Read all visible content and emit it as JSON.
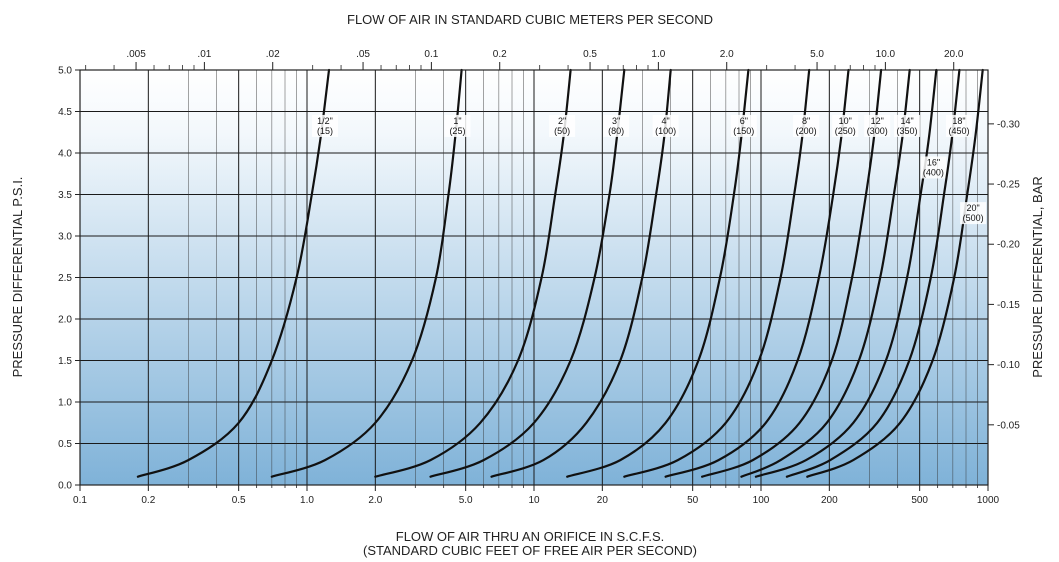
{
  "chart_data": {
    "type": "line",
    "scale_x": "log",
    "grid": true,
    "top_axis_title": "FLOW OF AIR IN STANDARD CUBIC METERS PER SECOND",
    "xlabel_line1": "FLOW OF AIR THRU AN ORIFICE IN S.C.F.S.",
    "xlabel_line2": "(STANDARD CUBIC FEET OF FREE AIR PER SECOND)",
    "ylabel": "PRESSURE DIFFERENTIAL P.S.I.",
    "ylabel_right": "PRESSURE DIFFERENTIAL, BAR",
    "xlim": [
      0.1,
      1000
    ],
    "ylim": [
      0.0,
      5.0
    ],
    "x_ticks": [
      {
        "value": 0.1,
        "label": "0.1"
      },
      {
        "value": 0.2,
        "label": "0.2"
      },
      {
        "value": 0.5,
        "label": "0.5"
      },
      {
        "value": 1,
        "label": "1.0"
      },
      {
        "value": 2,
        "label": "2.0"
      },
      {
        "value": 5,
        "label": "5.0"
      },
      {
        "value": 10,
        "label": "10"
      },
      {
        "value": 20,
        "label": "20"
      },
      {
        "value": 50,
        "label": "50"
      },
      {
        "value": 100,
        "label": "100"
      },
      {
        "value": 200,
        "label": "200"
      },
      {
        "value": 500,
        "label": "500"
      },
      {
        "value": 1000,
        "label": "1000"
      }
    ],
    "x_minor": [
      0.3,
      0.4,
      0.6,
      0.7,
      0.8,
      0.9,
      3,
      4,
      6,
      7,
      8,
      9,
      30,
      40,
      60,
      70,
      80,
      90,
      300,
      400,
      600,
      700,
      800,
      900
    ],
    "top_ticks": [
      {
        "label": ".005",
        "m3s": 0.005
      },
      {
        "label": ".01",
        "m3s": 0.01
      },
      {
        "label": ".02",
        "m3s": 0.02
      },
      {
        "label": ".05",
        "m3s": 0.05
      },
      {
        "label": "0.1",
        "m3s": 0.1
      },
      {
        "label": "0.2",
        "m3s": 0.2
      },
      {
        "label": "0.5",
        "m3s": 0.5
      },
      {
        "label": "1.0",
        "m3s": 1.0
      },
      {
        "label": "2.0",
        "m3s": 2.0
      },
      {
        "label": "5.0",
        "m3s": 5.0
      },
      {
        "label": "10.0",
        "m3s": 10.0
      },
      {
        "label": "20.0",
        "m3s": 20.0
      }
    ],
    "top_minor_m3s": [
      0.003,
      0.004,
      0.006,
      0.007,
      0.008,
      0.009,
      0.03,
      0.04,
      0.06,
      0.07,
      0.08,
      0.09,
      0.3,
      0.4,
      0.6,
      0.7,
      0.8,
      0.9,
      3,
      4,
      6,
      7,
      8,
      9
    ],
    "y_ticks": [
      {
        "value": 0.0,
        "label": "0.0"
      },
      {
        "value": 0.5,
        "label": "0.5"
      },
      {
        "value": 1.0,
        "label": "1.0"
      },
      {
        "value": 1.5,
        "label": "1.5"
      },
      {
        "value": 2.0,
        "label": "2.0"
      },
      {
        "value": 2.5,
        "label": "2.5"
      },
      {
        "value": 3.0,
        "label": "3.0"
      },
      {
        "value": 3.5,
        "label": "3.5"
      },
      {
        "value": 4.0,
        "label": "4.0"
      },
      {
        "value": 4.5,
        "label": "4.5"
      },
      {
        "value": 5.0,
        "label": "5.0"
      }
    ],
    "y_right_ticks": [
      {
        "label": "0.05",
        "psi": 0.725
      },
      {
        "label": "0.10",
        "psi": 1.45
      },
      {
        "label": "0.15",
        "psi": 2.176
      },
      {
        "label": "0.20",
        "psi": 2.901
      },
      {
        "label": "0.25",
        "psi": 3.626
      },
      {
        "label": "0.30",
        "psi": 4.351
      }
    ],
    "series": [
      {
        "name": "1/2\"",
        "sub": "(15)",
        "label_at": [
          1.2,
          4.35
        ],
        "points": [
          [
            0.18,
            0.1
          ],
          [
            0.3,
            0.3
          ],
          [
            0.5,
            0.75
          ],
          [
            0.7,
            1.5
          ],
          [
            0.9,
            2.5
          ],
          [
            1.05,
            3.5
          ],
          [
            1.15,
            4.2
          ],
          [
            1.25,
            5.0
          ]
        ]
      },
      {
        "name": "1\"",
        "sub": "(25)",
        "label_at": [
          4.6,
          4.35
        ],
        "points": [
          [
            0.7,
            0.1
          ],
          [
            1.2,
            0.3
          ],
          [
            2.0,
            0.75
          ],
          [
            2.9,
            1.5
          ],
          [
            3.7,
            2.5
          ],
          [
            4.2,
            3.5
          ],
          [
            4.5,
            4.2
          ],
          [
            4.8,
            5.0
          ]
        ]
      },
      {
        "name": "2\"",
        "sub": "(50)",
        "label_at": [
          13.3,
          4.35
        ],
        "points": [
          [
            2.0,
            0.1
          ],
          [
            3.5,
            0.3
          ],
          [
            5.8,
            0.75
          ],
          [
            8.5,
            1.5
          ],
          [
            10.8,
            2.5
          ],
          [
            12.4,
            3.5
          ],
          [
            13.5,
            4.2
          ],
          [
            14.5,
            5.0
          ]
        ]
      },
      {
        "name": "3\"",
        "sub": "(80)",
        "label_at": [
          23,
          4.35
        ],
        "points": [
          [
            3.5,
            0.1
          ],
          [
            6.0,
            0.3
          ],
          [
            10.0,
            0.75
          ],
          [
            14.5,
            1.5
          ],
          [
            18.5,
            2.5
          ],
          [
            21.5,
            3.5
          ],
          [
            23.2,
            4.2
          ],
          [
            25,
            5.0
          ]
        ]
      },
      {
        "name": "4\"",
        "sub": "(100)",
        "label_at": [
          38,
          4.35
        ],
        "points": [
          [
            6.5,
            0.1
          ],
          [
            11.0,
            0.3
          ],
          [
            17.0,
            0.75
          ],
          [
            24.0,
            1.5
          ],
          [
            30.0,
            2.5
          ],
          [
            34.5,
            3.5
          ],
          [
            37.5,
            4.2
          ],
          [
            40,
            5.0
          ]
        ]
      },
      {
        "name": "6\"",
        "sub": "(150)",
        "label_at": [
          84,
          4.35
        ],
        "points": [
          [
            14,
            0.1
          ],
          [
            24,
            0.3
          ],
          [
            38,
            0.75
          ],
          [
            53,
            1.5
          ],
          [
            66,
            2.5
          ],
          [
            76,
            3.5
          ],
          [
            82,
            4.2
          ],
          [
            88,
            5.0
          ]
        ]
      },
      {
        "name": "8\"",
        "sub": "(200)",
        "label_at": [
          158,
          4.35
        ],
        "points": [
          [
            25,
            0.1
          ],
          [
            43,
            0.3
          ],
          [
            70,
            0.75
          ],
          [
            98,
            1.5
          ],
          [
            122,
            2.5
          ],
          [
            140,
            3.5
          ],
          [
            152,
            4.2
          ],
          [
            163,
            5.0
          ]
        ]
      },
      {
        "name": "10\"",
        "sub": "(250)",
        "label_at": [
          235,
          4.35
        ],
        "points": [
          [
            38,
            0.1
          ],
          [
            65,
            0.3
          ],
          [
            105,
            0.75
          ],
          [
            145,
            1.5
          ],
          [
            180,
            2.5
          ],
          [
            208,
            3.5
          ],
          [
            226,
            4.2
          ],
          [
            243,
            5.0
          ]
        ]
      },
      {
        "name": "12\"",
        "sub": "(300)",
        "label_at": [
          325,
          4.35
        ],
        "points": [
          [
            55,
            0.1
          ],
          [
            92,
            0.3
          ],
          [
            148,
            0.75
          ],
          [
            205,
            1.5
          ],
          [
            252,
            2.5
          ],
          [
            290,
            3.5
          ],
          [
            315,
            4.2
          ],
          [
            338,
            5.0
          ]
        ]
      },
      {
        "name": "14\"",
        "sub": "(350)",
        "label_at": [
          440,
          4.35
        ],
        "points": [
          [
            82,
            0.1
          ],
          [
            122,
            0.3
          ],
          [
            195,
            0.75
          ],
          [
            270,
            1.5
          ],
          [
            335,
            2.5
          ],
          [
            385,
            3.5
          ],
          [
            420,
            4.2
          ],
          [
            452,
            5.0
          ]
        ]
      },
      {
        "name": "16\"",
        "sub": "(400)",
        "label_at": [
          575,
          3.85
        ],
        "points": [
          [
            95,
            0.1
          ],
          [
            158,
            0.3
          ],
          [
            255,
            0.75
          ],
          [
            355,
            1.5
          ],
          [
            440,
            2.5
          ],
          [
            505,
            3.5
          ],
          [
            550,
            4.2
          ],
          [
            592,
            5.0
          ]
        ]
      },
      {
        "name": "18\"",
        "sub": "(450)",
        "label_at": [
          745,
          4.35
        ],
        "points": [
          [
            130,
            0.1
          ],
          [
            202,
            0.3
          ],
          [
            325,
            0.75
          ],
          [
            450,
            1.5
          ],
          [
            560,
            2.5
          ],
          [
            640,
            3.5
          ],
          [
            695,
            4.2
          ],
          [
            748,
            5.0
          ]
        ]
      },
      {
        "name": "20\"",
        "sub": "(500)",
        "label_at": [
          860,
          3.3
        ],
        "points": [
          [
            160,
            0.1
          ],
          [
            255,
            0.3
          ],
          [
            410,
            0.75
          ],
          [
            570,
            1.5
          ],
          [
            710,
            2.5
          ],
          [
            810,
            3.5
          ],
          [
            880,
            4.2
          ],
          [
            948,
            5.0
          ]
        ]
      }
    ]
  }
}
